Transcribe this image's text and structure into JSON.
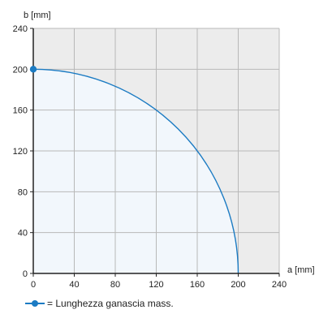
{
  "chart_data": {
    "type": "area",
    "xlabel": "a [mm]",
    "ylabel": "b [mm]",
    "xlim": [
      0,
      240
    ],
    "ylim": [
      0,
      240
    ],
    "x_ticks": [
      "0",
      "40",
      "80",
      "120",
      "160",
      "200",
      "240"
    ],
    "y_ticks": [
      "0",
      "40",
      "80",
      "120",
      "160",
      "200",
      "240"
    ],
    "grid": true,
    "series": [
      {
        "name": "= Lunghezza ganascia mass.",
        "curve": "quarter-circle",
        "radius": 200,
        "x": [
          0,
          40,
          80,
          120,
          160,
          200
        ],
        "y": [
          200,
          196,
          183,
          160,
          120,
          0
        ],
        "marker_point": [
          0,
          200
        ]
      }
    ],
    "legend_position": "bottom-left"
  },
  "colors": {
    "line": "#1b7bc3",
    "fill": "#f2f7fc",
    "outside_fill": "#ececec",
    "grid": "#b8b8b8",
    "axis": "#222222"
  }
}
